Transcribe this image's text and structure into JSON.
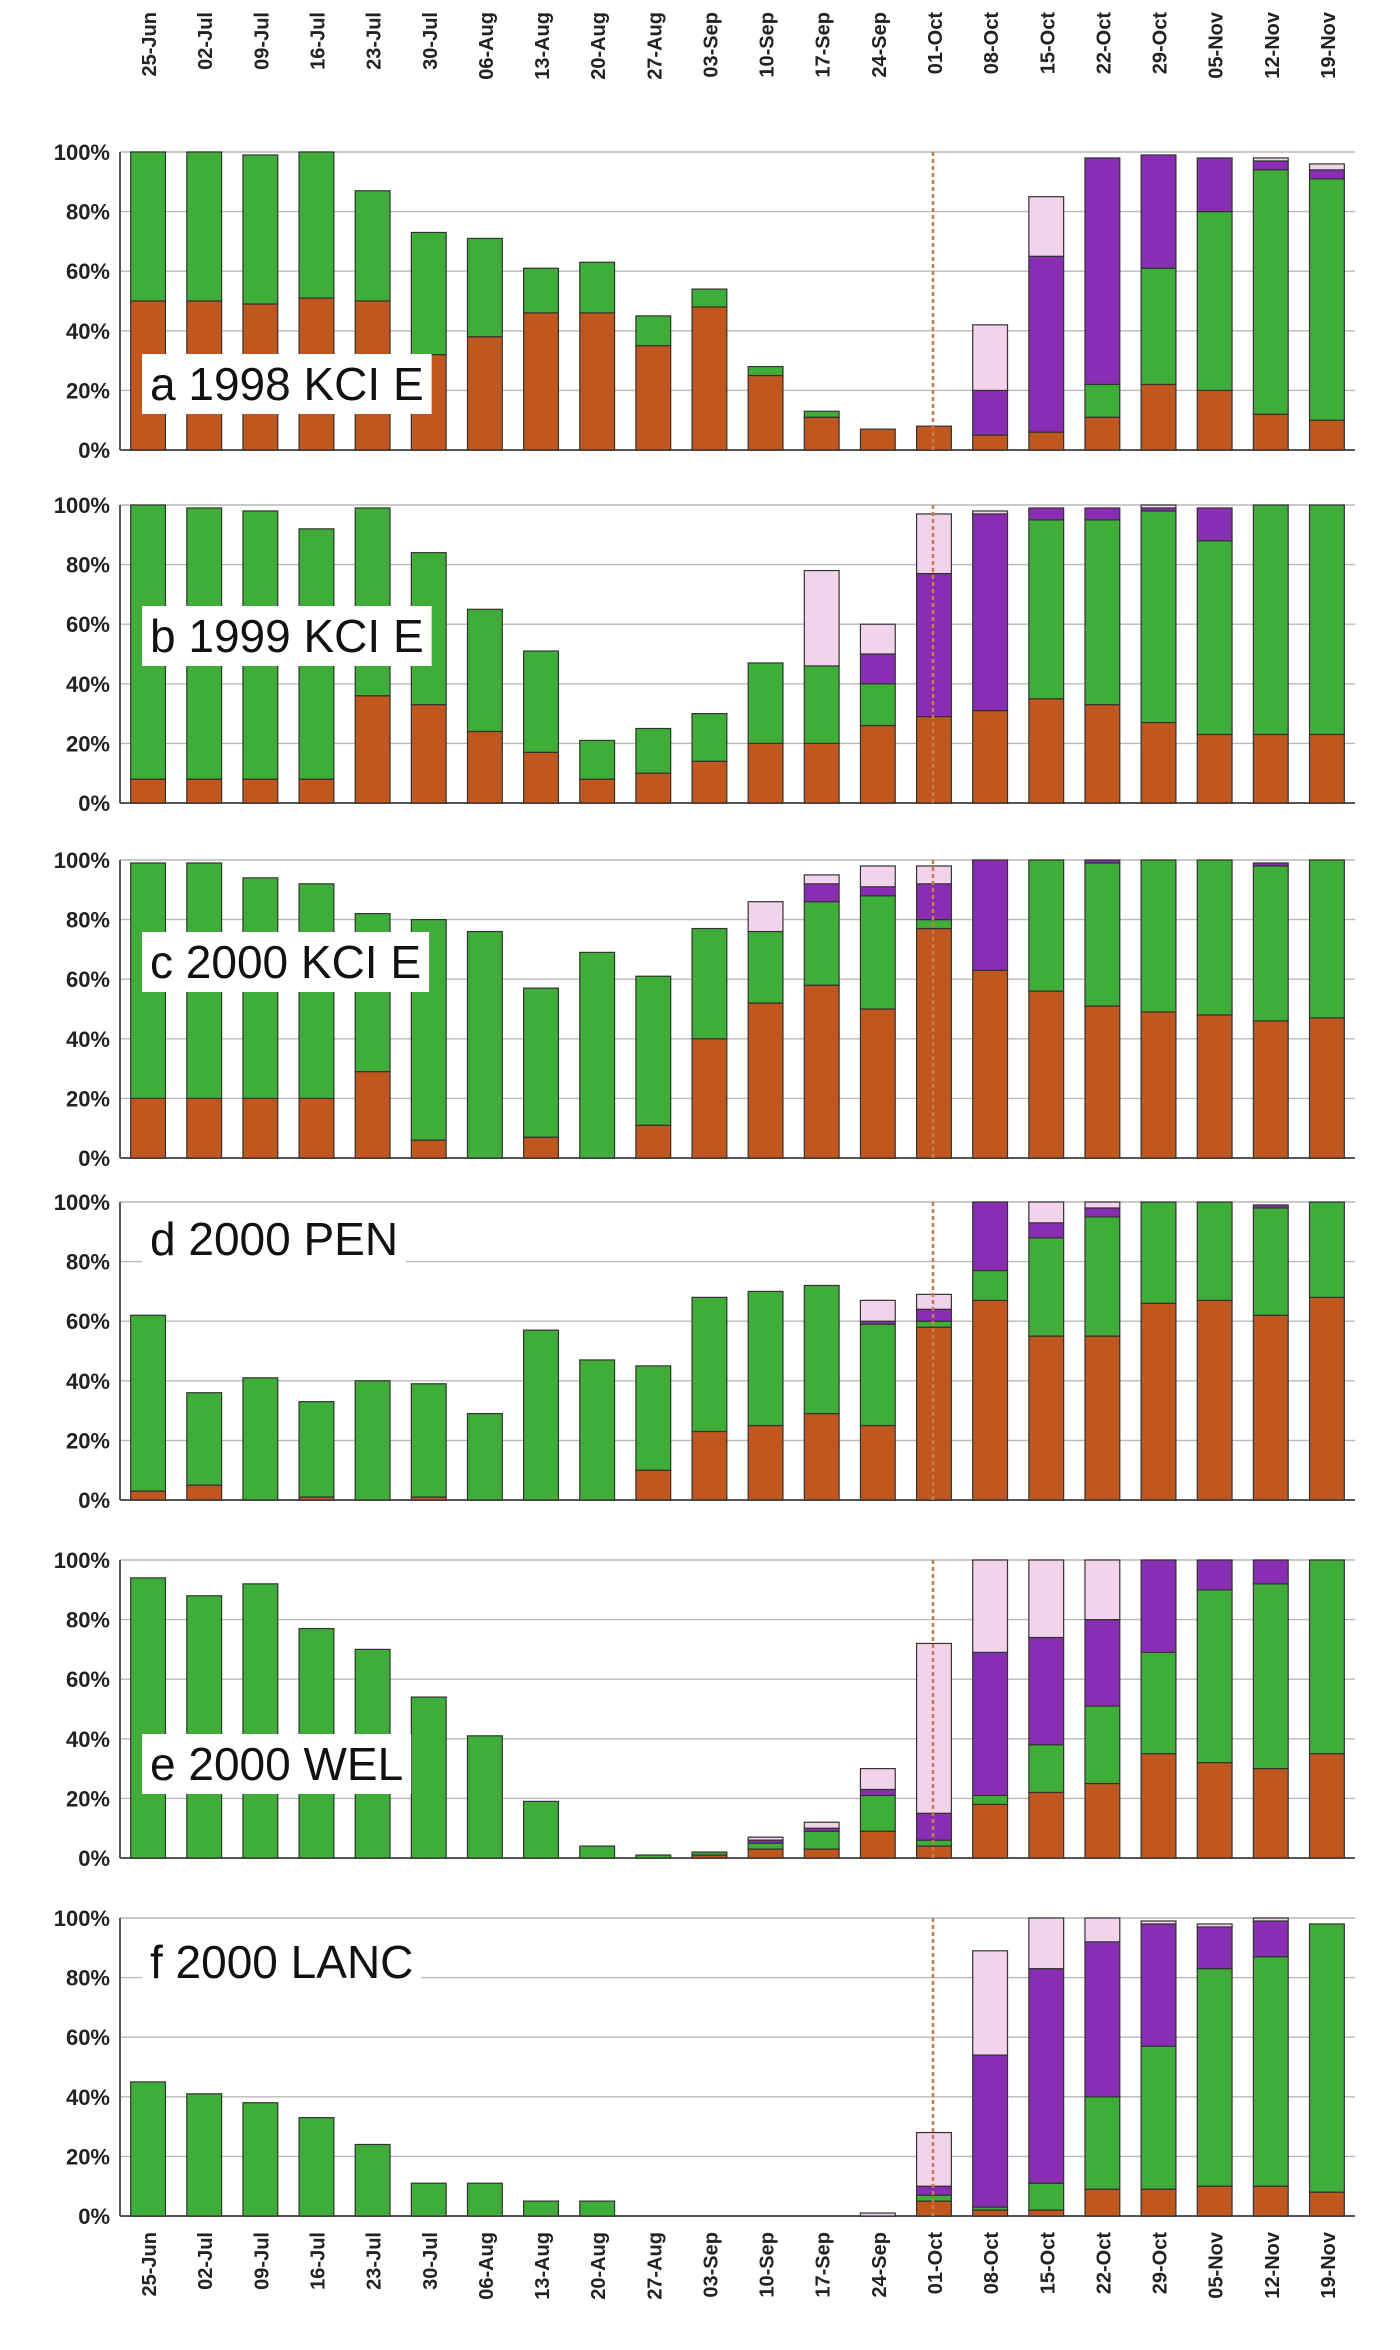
{
  "colors": {
    "brown": "#c0571e",
    "green": "#3fae38",
    "purple": "#8a2db5",
    "pink": "#f3d3ec",
    "grid": "#b9b9b9",
    "divider": "#c77a4f",
    "axis": "#555555"
  },
  "categories": [
    "25-Jun",
    "02-Jul",
    "09-Jul",
    "16-Jul",
    "23-Jul",
    "30-Jul",
    "06-Aug",
    "13-Aug",
    "20-Aug",
    "27-Aug",
    "03-Sep",
    "10-Sep",
    "17-Sep",
    "24-Sep",
    "01-Oct",
    "08-Oct",
    "15-Oct",
    "22-Oct",
    "29-Oct",
    "05-Nov",
    "12-Nov",
    "19-Nov"
  ],
  "y_ticks": [
    "0%",
    "20%",
    "40%",
    "60%",
    "80%",
    "100%"
  ],
  "chart_data": [
    {
      "type": "bar",
      "stacked": true,
      "label": "a 1998 KCI E",
      "ylim": [
        0,
        100
      ],
      "grid": true,
      "series": [
        {
          "color": "brown",
          "values": [
            50,
            50,
            49,
            51,
            50,
            32,
            38,
            46,
            46,
            35,
            48,
            25,
            11,
            7,
            8,
            5,
            6,
            11,
            22,
            20,
            12,
            10
          ]
        },
        {
          "color": "green",
          "values": [
            50,
            50,
            50,
            49,
            37,
            41,
            33,
            15,
            17,
            10,
            6,
            3,
            2,
            0,
            0,
            0,
            0,
            11,
            39,
            60,
            82,
            81
          ]
        },
        {
          "color": "purple",
          "values": [
            0,
            0,
            0,
            0,
            0,
            0,
            0,
            0,
            0,
            0,
            0,
            0,
            0,
            0,
            0,
            15,
            59,
            76,
            38,
            18,
            3,
            3
          ]
        },
        {
          "color": "pink",
          "values": [
            0,
            0,
            0,
            0,
            0,
            0,
            0,
            0,
            0,
            0,
            0,
            0,
            0,
            0,
            0,
            22,
            20,
            0,
            0,
            0,
            1,
            2
          ]
        }
      ]
    },
    {
      "type": "bar",
      "stacked": true,
      "label": "b 1999 KCI E",
      "ylim": [
        0,
        100
      ],
      "grid": true,
      "series": [
        {
          "color": "brown",
          "values": [
            8,
            8,
            8,
            8,
            36,
            33,
            24,
            17,
            8,
            10,
            14,
            20,
            20,
            26,
            29,
            31,
            35,
            33,
            27,
            23,
            23,
            23
          ]
        },
        {
          "color": "green",
          "values": [
            92,
            91,
            90,
            84,
            63,
            51,
            41,
            34,
            13,
            15,
            16,
            27,
            26,
            14,
            0,
            0,
            60,
            62,
            71,
            65,
            77,
            77
          ]
        },
        {
          "color": "purple",
          "values": [
            0,
            0,
            0,
            0,
            0,
            0,
            0,
            0,
            0,
            0,
            0,
            0,
            0,
            10,
            48,
            66,
            4,
            4,
            1,
            11,
            0,
            0
          ]
        },
        {
          "color": "pink",
          "values": [
            0,
            0,
            0,
            0,
            0,
            0,
            0,
            0,
            0,
            0,
            0,
            0,
            32,
            10,
            20,
            1,
            0,
            0,
            1,
            0,
            0,
            0
          ]
        }
      ]
    },
    {
      "type": "bar",
      "stacked": true,
      "label": "c 2000 KCI E",
      "ylim": [
        0,
        100
      ],
      "grid": true,
      "series": [
        {
          "color": "brown",
          "values": [
            20,
            20,
            20,
            20,
            29,
            6,
            0,
            7,
            0,
            11,
            40,
            52,
            58,
            50,
            77,
            63,
            56,
            51,
            49,
            48,
            46,
            47
          ]
        },
        {
          "color": "green",
          "values": [
            79,
            79,
            74,
            72,
            53,
            74,
            76,
            50,
            69,
            50,
            37,
            24,
            28,
            38,
            3,
            0,
            44,
            48,
            51,
            52,
            52,
            53
          ]
        },
        {
          "color": "purple",
          "values": [
            0,
            0,
            0,
            0,
            0,
            0,
            0,
            0,
            0,
            0,
            0,
            0,
            6,
            3,
            12,
            37,
            0,
            1,
            0,
            0,
            1,
            0
          ]
        },
        {
          "color": "pink",
          "values": [
            0,
            0,
            0,
            0,
            0,
            0,
            0,
            0,
            0,
            0,
            0,
            10,
            3,
            7,
            6,
            0,
            0,
            0,
            0,
            0,
            0,
            0
          ]
        }
      ]
    },
    {
      "type": "bar",
      "stacked": true,
      "label": "d 2000 PEN",
      "ylim": [
        0,
        100
      ],
      "grid": true,
      "series": [
        {
          "color": "brown",
          "values": [
            3,
            5,
            0,
            1,
            0,
            1,
            0,
            0,
            0,
            10,
            23,
            25,
            29,
            25,
            58,
            67,
            55,
            55,
            66,
            67,
            62,
            68
          ]
        },
        {
          "color": "green",
          "values": [
            59,
            31,
            41,
            32,
            40,
            38,
            29,
            57,
            47,
            35,
            45,
            45,
            43,
            34,
            2,
            10,
            33,
            40,
            34,
            33,
            36,
            32
          ]
        },
        {
          "color": "purple",
          "values": [
            0,
            0,
            0,
            0,
            0,
            0,
            0,
            0,
            0,
            0,
            0,
            0,
            0,
            1,
            4,
            23,
            5,
            3,
            0,
            0,
            1,
            0
          ]
        },
        {
          "color": "pink",
          "values": [
            0,
            0,
            0,
            0,
            0,
            0,
            0,
            0,
            0,
            0,
            0,
            0,
            0,
            7,
            5,
            0,
            7,
            2,
            0,
            0,
            0,
            0
          ]
        }
      ]
    },
    {
      "type": "bar",
      "stacked": true,
      "label": "e 2000 WEL",
      "ylim": [
        0,
        100
      ],
      "grid": true,
      "series": [
        {
          "color": "brown",
          "values": [
            0,
            0,
            0,
            0,
            0,
            0,
            0,
            0,
            0,
            0,
            1,
            3,
            3,
            9,
            4,
            18,
            22,
            25,
            35,
            32,
            30,
            35
          ]
        },
        {
          "color": "green",
          "values": [
            94,
            88,
            92,
            77,
            70,
            54,
            41,
            19,
            4,
            1,
            1,
            2,
            6,
            12,
            2,
            3,
            16,
            26,
            34,
            58,
            62,
            65
          ]
        },
        {
          "color": "purple",
          "values": [
            0,
            0,
            0,
            0,
            0,
            0,
            0,
            0,
            0,
            0,
            0,
            1,
            1,
            2,
            9,
            48,
            36,
            29,
            31,
            10,
            8,
            0
          ]
        },
        {
          "color": "pink",
          "values": [
            0,
            0,
            0,
            0,
            0,
            0,
            0,
            0,
            0,
            0,
            0,
            1,
            2,
            7,
            57,
            31,
            26,
            20,
            0,
            0,
            0,
            0
          ]
        }
      ]
    },
    {
      "type": "bar",
      "stacked": true,
      "label": "f 2000 LANC",
      "ylim": [
        0,
        100
      ],
      "grid": true,
      "series": [
        {
          "color": "brown",
          "values": [
            0,
            0,
            0,
            0,
            0,
            0,
            0,
            0,
            0,
            0,
            0,
            0,
            0,
            0,
            5,
            2,
            2,
            9,
            9,
            10,
            10,
            8
          ]
        },
        {
          "color": "green",
          "values": [
            45,
            41,
            38,
            33,
            24,
            11,
            11,
            5,
            5,
            0,
            0,
            0,
            0,
            0,
            2,
            1,
            9,
            31,
            48,
            73,
            77,
            90
          ]
        },
        {
          "color": "purple",
          "values": [
            0,
            0,
            0,
            0,
            0,
            0,
            0,
            0,
            0,
            0,
            0,
            0,
            0,
            0,
            3,
            51,
            72,
            52,
            41,
            14,
            12,
            0
          ]
        },
        {
          "color": "pink",
          "values": [
            0,
            0,
            0,
            0,
            0,
            0,
            0,
            0,
            0,
            0,
            0,
            0,
            0,
            1,
            18,
            35,
            17,
            8,
            1,
            1,
            1,
            0
          ]
        }
      ]
    }
  ]
}
